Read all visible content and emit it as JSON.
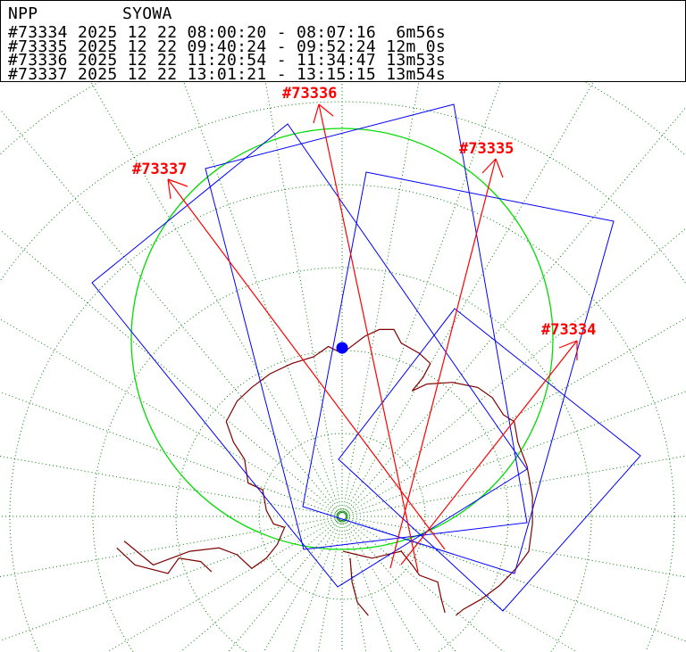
{
  "header": {
    "satellite": "NPP",
    "station": "SYOWA",
    "passes": [
      {
        "orbit": "#73334",
        "date": "2025 12 22",
        "start": "08:00:20",
        "end": "08:07:16",
        "duration": " 6m56s"
      },
      {
        "orbit": "#73335",
        "date": "2025 12 22",
        "start": "09:40:24",
        "end": "09:52:24",
        "duration": "12m 0s"
      },
      {
        "orbit": "#73336",
        "date": "2025 12 22",
        "start": "11:20:54",
        "end": "11:34:47",
        "duration": "13m53s"
      },
      {
        "orbit": "#73337",
        "date": "2025 12 22",
        "start": "13:01:21",
        "end": "13:15:15",
        "duration": "13m54s"
      }
    ]
  },
  "map": {
    "projection": "south polar stereographic",
    "colors": {
      "grid": "#008000",
      "coverage_circle": "#00dd00",
      "swath": "#0000ff",
      "track": "#ff0000",
      "coast": "#800000",
      "station": "#0000ff"
    },
    "track_labels": [
      "#73334",
      "#73335",
      "#73336",
      "#73337"
    ]
  }
}
